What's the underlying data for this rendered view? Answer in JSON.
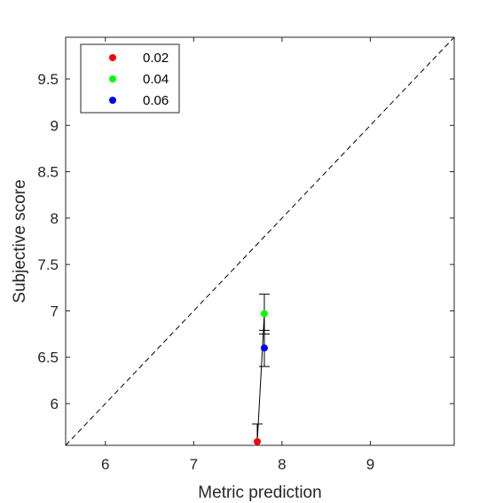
{
  "chart_data": {
    "type": "scatter",
    "xlabel": "Metric prediction",
    "ylabel": "Subjective score",
    "xlim": [
      5.55,
      9.95
    ],
    "ylim": [
      5.55,
      9.95
    ],
    "xticks": [
      "6",
      "7",
      "8",
      "9"
    ],
    "yticks": [
      "6",
      "6.5",
      "7",
      "7.5",
      "8",
      "8.5",
      "9",
      "9.5"
    ],
    "grid": false,
    "legend_position": "top-left",
    "identity_line": true,
    "series": [
      {
        "name": "0.02",
        "color": "#ff0000",
        "x": 7.72,
        "y": 5.59,
        "y_upper": 5.78
      },
      {
        "name": "0.04",
        "color": "#00ff00",
        "x": 7.8,
        "y": 6.97,
        "y_lower": 6.75,
        "y_upper": 7.18
      },
      {
        "name": "0.06",
        "color": "#0000ff",
        "x": 7.8,
        "y": 6.6,
        "y_lower": 6.4,
        "y_upper": 6.79
      }
    ]
  }
}
